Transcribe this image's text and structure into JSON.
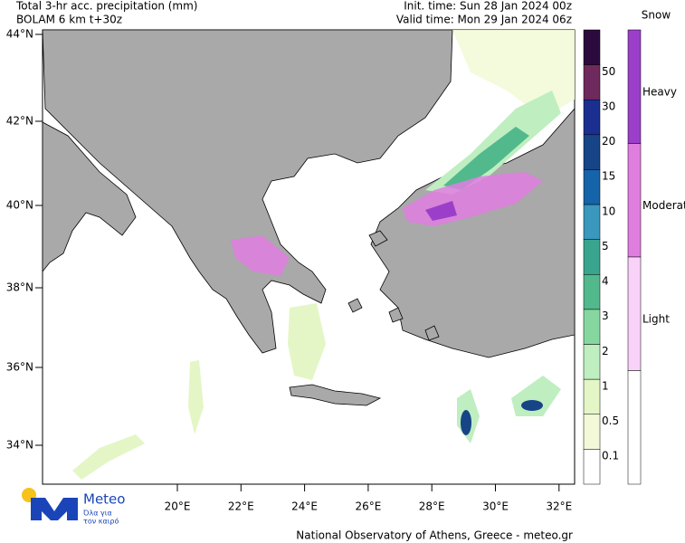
{
  "header": {
    "title": "Total 3-hr acc. precipitation (mm)",
    "subtitle": "BOLAM 6 km t+30z",
    "init_time": "Init. time: Sun 28 Jan 2024 00z",
    "valid_time": "Valid time: Mon 29 Jan 2024 06z"
  },
  "map": {
    "lat_labels": [
      "44°N",
      "42°N",
      "40°N",
      "38°N",
      "36°N",
      "34°N"
    ],
    "lon_labels": [
      "20°E",
      "22°E",
      "24°E",
      "26°E",
      "28°E",
      "30°E",
      "32°E"
    ]
  },
  "rain_scale": {
    "labels": [
      "50",
      "30",
      "20",
      "15",
      "10",
      "5",
      "4",
      "3",
      "2",
      "1",
      "0.5",
      "0.1"
    ],
    "colors": [
      "#2c0a3e",
      "#6e2a5c",
      "#1b2f90",
      "#174486",
      "#1563a8",
      "#3a97bd",
      "#3aa58e",
      "#52b98d",
      "#86d79f",
      "#bfeec0",
      "#e4f6c6",
      "#f3f9d8",
      "#ffffff"
    ]
  },
  "snow_scale": {
    "title": "Snow",
    "labels": [
      "Heavy",
      "Moderate",
      "Light"
    ],
    "colors": [
      "#9b3fca",
      "#e07ee0",
      "#f9d2f9",
      "#ffffff"
    ]
  },
  "footer": "National Observatory of Athens, Greece - meteo.gr",
  "logo": {
    "name": "Meteo",
    "tagline_1": "Όλα για",
    "tagline_2": "τον καιρό"
  }
}
